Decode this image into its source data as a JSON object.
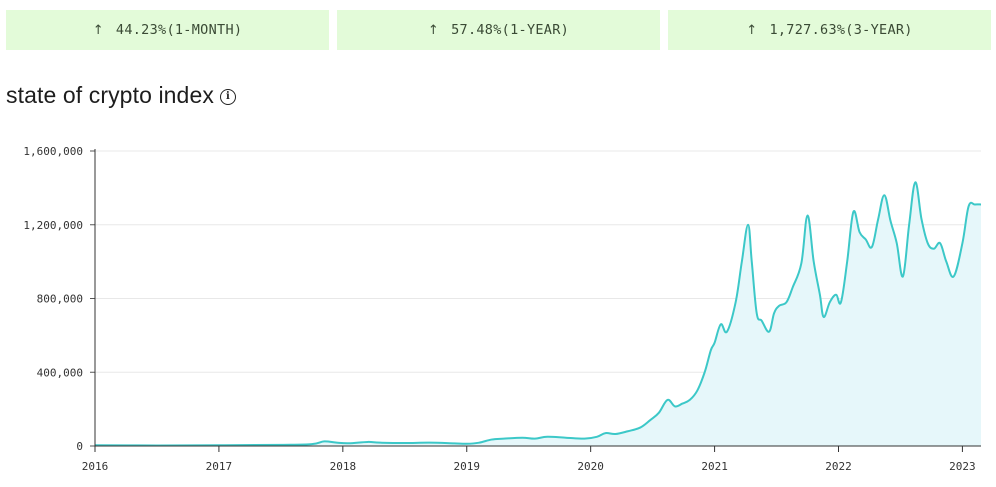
{
  "stats": [
    {
      "arrow": "↑",
      "text": "44.23%(1-MONTH)"
    },
    {
      "arrow": "↑",
      "text": "57.48%(1-YEAR)"
    },
    {
      "arrow": "↑",
      "text": "1,727.63%(3-YEAR)"
    }
  ],
  "title": "state of crypto index",
  "info_icon": "info-icon",
  "colors": {
    "stat_bg": "#e3fbd9",
    "line": "#3cc8c8",
    "area": "#e6f7fa",
    "grid": "#e8e8e8"
  },
  "chart_data": {
    "type": "area",
    "title": "state of crypto index",
    "xlabel": "",
    "ylabel": "",
    "ylim": [
      0,
      1600000
    ],
    "yticks": [
      0,
      400000,
      800000,
      1200000,
      1600000
    ],
    "ytick_labels": [
      "0",
      "400,000",
      "800,000",
      "1,200,000",
      "1,600,000"
    ],
    "xticks": [
      2016,
      2017,
      2018,
      2019,
      2020,
      2021,
      2022,
      2023
    ],
    "xtick_labels": [
      "2016",
      "2017",
      "2018",
      "2019",
      "2020",
      "2021",
      "2022",
      "2023"
    ],
    "xlim": [
      2016.0,
      2023.15
    ],
    "grid": true,
    "series": [
      {
        "x": [
          2016.0,
          2016.5,
          2017.0,
          2017.5,
          2017.75,
          2017.85,
          2017.95,
          2018.05,
          2018.2,
          2018.3,
          2018.5,
          2018.7,
          2018.9,
          2019.0,
          2019.1,
          2019.2,
          2019.3,
          2019.45,
          2019.55,
          2019.65,
          2019.8,
          2019.95,
          2020.05,
          2020.12,
          2020.2,
          2020.3,
          2020.4,
          2020.48,
          2020.55,
          2020.62,
          2020.68,
          2020.74,
          2020.8,
          2020.86,
          2020.92,
          2020.97,
          2021.0,
          2021.05,
          2021.1,
          2021.17,
          2021.22,
          2021.27,
          2021.3,
          2021.34,
          2021.38,
          2021.44,
          2021.48,
          2021.52,
          2021.58,
          2021.63,
          2021.7,
          2021.75,
          2021.8,
          2021.85,
          2021.88,
          2021.93,
          2021.98,
          2022.02,
          2022.07,
          2022.12,
          2022.17,
          2022.22,
          2022.27,
          2022.32,
          2022.37,
          2022.42,
          2022.47,
          2022.52,
          2022.57,
          2022.62,
          2022.67,
          2022.72,
          2022.77,
          2022.82,
          2022.87,
          2022.93,
          2023.0,
          2023.05,
          2023.1,
          2023.15
        ],
        "y": [
          4000,
          3000,
          4000,
          6000,
          10000,
          25000,
          18000,
          15000,
          22000,
          18000,
          16000,
          18000,
          14000,
          12000,
          18000,
          35000,
          40000,
          45000,
          40000,
          50000,
          45000,
          40000,
          50000,
          70000,
          65000,
          80000,
          100000,
          140000,
          180000,
          250000,
          215000,
          230000,
          250000,
          300000,
          400000,
          520000,
          560000,
          660000,
          620000,
          780000,
          1000000,
          1200000,
          1000000,
          720000,
          680000,
          620000,
          720000,
          760000,
          780000,
          860000,
          990000,
          1250000,
          1000000,
          820000,
          700000,
          780000,
          820000,
          780000,
          1000000,
          1270000,
          1160000,
          1120000,
          1080000,
          1230000,
          1360000,
          1220000,
          1100000,
          920000,
          1200000,
          1430000,
          1230000,
          1100000,
          1070000,
          1100000,
          1000000,
          920000,
          1100000,
          1300000,
          1310000,
          1310000
        ]
      }
    ]
  }
}
